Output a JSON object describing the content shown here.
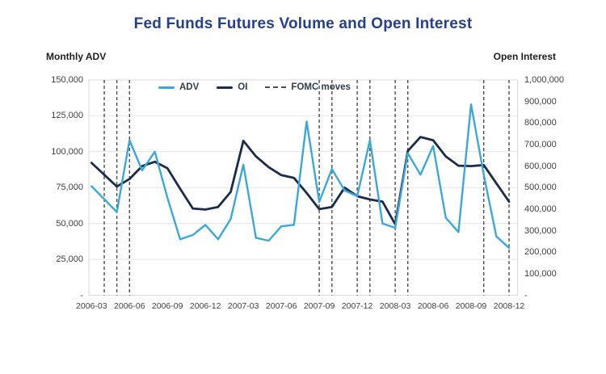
{
  "chart_data": {
    "type": "line",
    "title": "Fed Funds Futures Volume and Open Interest",
    "fomc_label": "FOMC moves",
    "grid": "horizontal",
    "grid_color": "#e6e6e6",
    "border_color": "#d9d9d9",
    "fomc_color": "#4d4d4d",
    "legend_position": "top-inside",
    "x": [
      "2006-03",
      "2006-04",
      "2006-05",
      "2006-06",
      "2006-07",
      "2006-08",
      "2006-09",
      "2006-10",
      "2006-11",
      "2006-12",
      "2007-01",
      "2007-02",
      "2007-03",
      "2007-04",
      "2007-05",
      "2007-06",
      "2007-07",
      "2007-08",
      "2007-09",
      "2007-10",
      "2007-11",
      "2007-12",
      "2008-01",
      "2008-02",
      "2008-03",
      "2008-04",
      "2008-05",
      "2008-06",
      "2008-07",
      "2008-08",
      "2008-09",
      "2008-10",
      "2008-11",
      "2008-12"
    ],
    "x_tick_labels": [
      "2006-03",
      "2006-06",
      "2006-09",
      "2006-12",
      "2007-03",
      "2007-06",
      "2007-09",
      "2007-12",
      "2008-03",
      "2008-06",
      "2008-09",
      "2008-12"
    ],
    "series": [
      {
        "name": "ADV",
        "axis": "left",
        "color": "#3aa8dc",
        "values": [
          76000,
          67000,
          58000,
          108000,
          87000,
          100000,
          68000,
          39000,
          42000,
          49000,
          39000,
          53000,
          91000,
          40000,
          38000,
          48000,
          49000,
          121000,
          65000,
          88000,
          73000,
          69000,
          108000,
          50000,
          47000,
          99000,
          84000,
          104000,
          54000,
          44000,
          133000,
          84000,
          41000,
          33000
        ]
      },
      {
        "name": "OI",
        "axis": "right",
        "color": "#1b2b4b",
        "values": [
          615000,
          560000,
          505000,
          540000,
          600000,
          620000,
          590000,
          495000,
          403000,
          398000,
          410000,
          480000,
          717000,
          645000,
          595000,
          558000,
          545000,
          475000,
          400000,
          410000,
          500000,
          460000,
          445000,
          435000,
          330000,
          670000,
          735000,
          720000,
          645000,
          602000,
          600000,
          605000,
          520000,
          435000
        ]
      }
    ],
    "fomc_moves": [
      "2006-04",
      "2006-05",
      "2006-06",
      "2007-09",
      "2007-10",
      "2007-12",
      "2008-01",
      "2008-03",
      "2008-04",
      "2008-10",
      "2008-12"
    ],
    "left_axis": {
      "label": "Monthly ADV",
      "min": 0,
      "max": 150000,
      "ticks": [
        "150,000",
        "125,000",
        "100,000",
        "75,000",
        "50,000",
        "25,000",
        "-"
      ]
    },
    "right_axis": {
      "label": "Open Interest",
      "min": 0,
      "max": 1000000,
      "ticks": [
        "1,000,000",
        "900,000",
        "800,000",
        "700,000",
        "600,000",
        "500,000",
        "400,000",
        "300,000",
        "200,000",
        "100,000",
        "-"
      ]
    }
  }
}
